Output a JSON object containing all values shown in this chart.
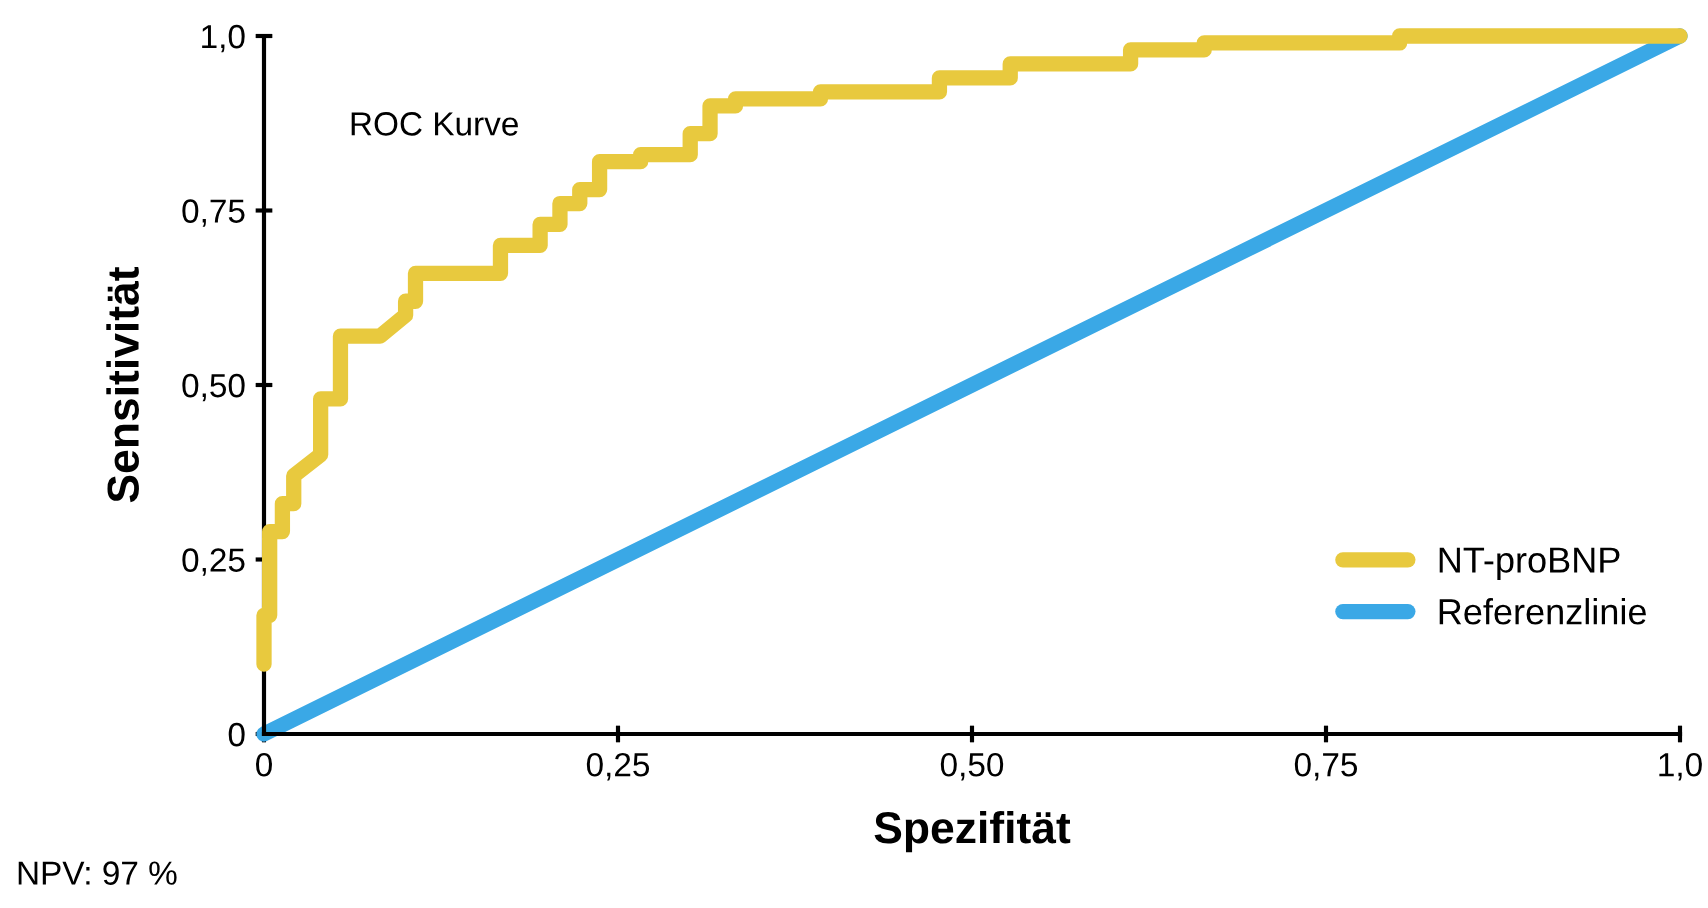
{
  "chart_data": {
    "type": "line",
    "xlabel": "Spezifität",
    "ylabel": "Sensitivität",
    "annotations": [
      "ROC Kurve",
      "NPV: 97 %"
    ],
    "xlim": [
      0,
      1
    ],
    "ylim": [
      0,
      1
    ],
    "xticks": [
      0,
      {
        "value": 0.25,
        "label": "0,25"
      },
      {
        "value": 0.5,
        "label": "0,50"
      },
      {
        "value": 0.75,
        "label": "0,75"
      },
      {
        "value": 1,
        "label": "1,0"
      }
    ],
    "yticks": [
      0,
      {
        "value": 0.25,
        "label": "0,25"
      },
      {
        "value": 0.5,
        "label": "0,50"
      },
      {
        "value": 0.75,
        "label": "0,75"
      },
      {
        "value": 1,
        "label": "1,0"
      }
    ],
    "grid": false,
    "legend": "bottom right",
    "marker": "none",
    "line_style": "solid",
    "series": [
      {
        "name": "NT-proBNP",
        "color": "#e8c93e",
        "x": [
          0,
          0,
          0.004,
          0.004,
          0.013,
          0.013,
          0.021,
          0.021,
          0.04,
          0.04,
          0.054,
          0.054,
          0.082,
          0.1,
          0.1,
          0.107,
          0.107,
          0.167,
          0.167,
          0.195,
          0.195,
          0.209,
          0.209,
          0.223,
          0.223,
          0.237,
          0.237,
          0.266,
          0.266,
          0.301,
          0.301,
          0.315,
          0.315,
          0.333,
          0.333,
          0.393,
          0.393,
          0.477,
          0.477,
          0.527,
          0.527,
          0.612,
          0.612,
          0.664,
          0.664,
          0.802,
          0.802,
          1
        ],
        "values": [
          0.1,
          0.17,
          0.17,
          0.29,
          0.29,
          0.33,
          0.33,
          0.37,
          0.4,
          0.48,
          0.48,
          0.57,
          0.57,
          0.6,
          0.62,
          0.62,
          0.66,
          0.66,
          0.7,
          0.7,
          0.73,
          0.73,
          0.76,
          0.76,
          0.78,
          0.78,
          0.82,
          0.82,
          0.83,
          0.83,
          0.86,
          0.86,
          0.9,
          0.9,
          0.91,
          0.91,
          0.92,
          0.92,
          0.94,
          0.94,
          0.96,
          0.96,
          0.98,
          0.98,
          0.99,
          0.99,
          1,
          1
        ]
      },
      {
        "name": "Referenzlinie",
        "color": "#3aa8e6",
        "x": [
          0,
          1
        ],
        "values": [
          0,
          1
        ]
      }
    ]
  }
}
